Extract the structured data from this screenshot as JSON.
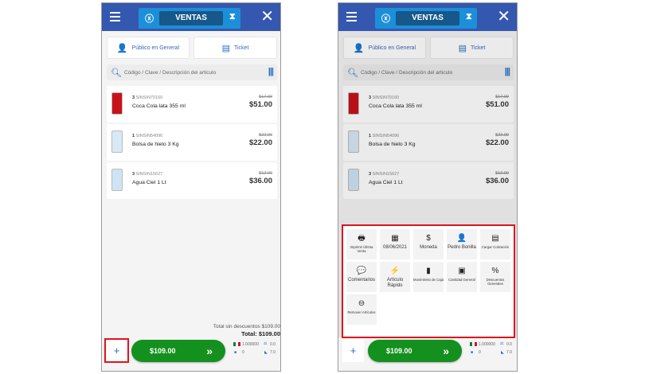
{
  "header": {
    "title": "VENTAS",
    "menu_icon": "hamburger-icon",
    "left_icon": "currency-exchange-icon",
    "right_icon": "hourglass-icon",
    "close_icon": "close-icon"
  },
  "customer_button": "Público en General",
  "ticket_button": "Ticket",
  "search": {
    "placeholder": "Código / Clave / Descripción del articulo"
  },
  "items": [
    {
      "qty": "3",
      "sku": "SINSIN70160",
      "name": "Coca Cola lata 355 ml",
      "unit_price": "$17.00",
      "total": "$51.00",
      "image": "coca-cola-can"
    },
    {
      "qty": "1",
      "sku": "SINSIN54096",
      "name": "Bolsa de hielo 3 Kg",
      "unit_price": "$22.00",
      "total": "$22.00",
      "image": "ice-bag"
    },
    {
      "qty": "3",
      "sku": "SINSIN15627",
      "name": "Agua Ciel 1 Lt",
      "unit_price": "$12.00",
      "total": "$36.00",
      "image": "water-bottle"
    }
  ],
  "totals": {
    "without_discount": "Total sin descuentos $109.00",
    "total": "Total: $109.00"
  },
  "pay_button": "$109.00",
  "add_button": "+",
  "stats": {
    "exchange_rate": "1.000000",
    "weight": "0.0",
    "items": "0",
    "quantity": "7.0"
  },
  "menu": [
    {
      "label": "Imprimir Última Venta",
      "icon": "printer-icon",
      "glyph": "🖶"
    },
    {
      "label": "08/06/2021",
      "icon": "calendar-icon",
      "glyph": "▦"
    },
    {
      "label": "Moneda",
      "icon": "dollar-icon",
      "glyph": "$"
    },
    {
      "label": "Pedro Bonilla",
      "icon": "user-icon",
      "glyph": "👤"
    },
    {
      "label": "Cargar Cotización",
      "icon": "document-icon",
      "glyph": "▤"
    },
    {
      "label": "Comentarios",
      "icon": "comments-icon",
      "glyph": "💬"
    },
    {
      "label": "Artículo Rápido",
      "icon": "lightning-icon",
      "glyph": "⚡"
    },
    {
      "label": "Movimiento de Caja",
      "icon": "cash-register-icon",
      "glyph": "▮"
    },
    {
      "label": "Cantidad General",
      "icon": "boxes-icon",
      "glyph": "▣"
    },
    {
      "label": "Descuentos Generales",
      "icon": "percent-icon",
      "glyph": "%"
    },
    {
      "label": "Remover Artículos",
      "icon": "remove-icon",
      "glyph": "⊖"
    }
  ],
  "colors": {
    "header": "#3457b0",
    "accent": "#1c8fd9",
    "pay": "#14901f",
    "highlight": "#e0141c"
  }
}
